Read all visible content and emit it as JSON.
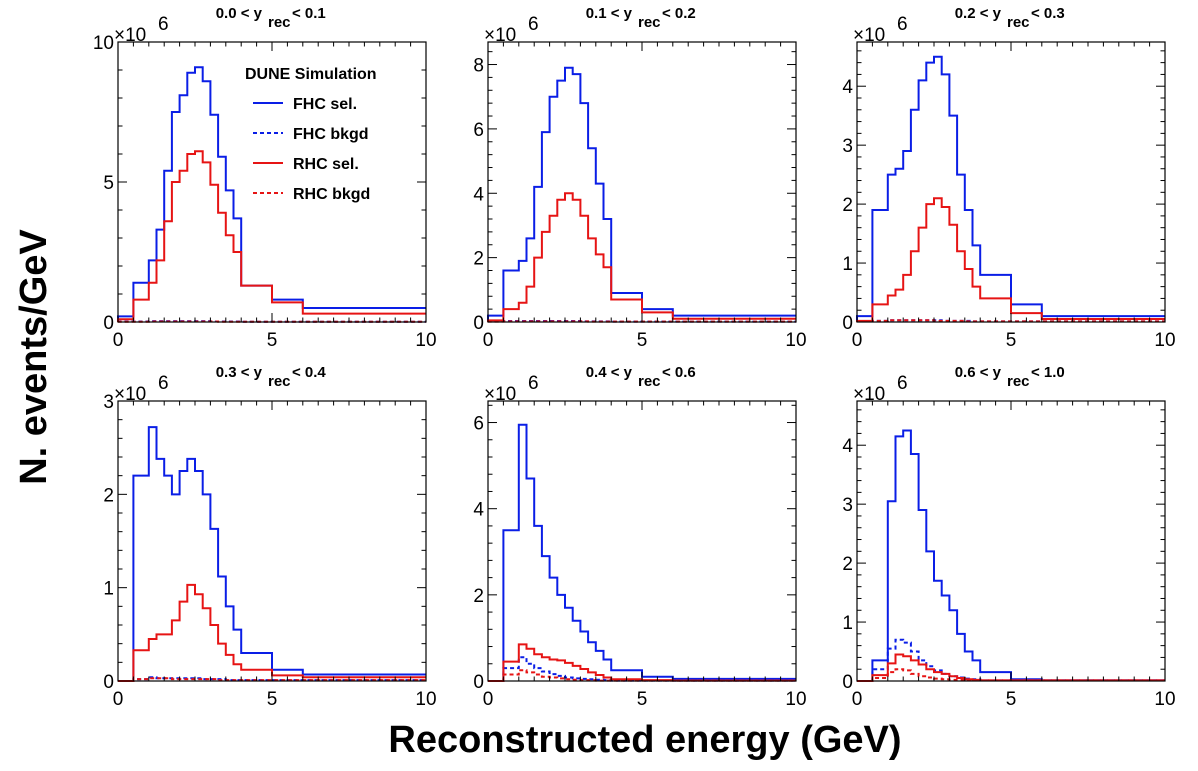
{
  "figure": {
    "xlabel": "Reconstructed energy (GeV)",
    "ylabel": "N. events/GeV",
    "colors": {
      "fhc": "#0a1ee6",
      "rhc": "#e61414",
      "axis": "#000000"
    }
  },
  "legend": {
    "title": "DUNE Simulation",
    "entries": [
      {
        "label": "FHC sel.",
        "series": "fhc_sel"
      },
      {
        "label": "FHC bkgd",
        "series": "fhc_bkgd"
      },
      {
        "label": "RHC sel.",
        "series": "rhc_sel"
      },
      {
        "label": "RHC bkgd",
        "series": "rhc_bkgd"
      }
    ]
  },
  "chart_data": [
    {
      "type": "step-histogram",
      "title_pre": "0.0 < y",
      "title_sub": "rec",
      "title_post": "< 0.1",
      "multiplier": "×10",
      "multiplier_exp": "6",
      "xlabel": "Reconstructed energy (GeV)",
      "ylabel": "N. events/GeV",
      "xlim": [
        0,
        10
      ],
      "ylim": [
        0,
        10
      ],
      "xticks": [
        0,
        5,
        10
      ],
      "yticks": [
        0,
        5,
        10
      ],
      "edges": [
        0,
        0.5,
        1,
        1.25,
        1.5,
        1.75,
        2,
        2.25,
        2.5,
        2.75,
        3,
        3.25,
        3.5,
        3.75,
        4,
        5,
        6,
        10
      ],
      "series": [
        {
          "name": "FHC sel.",
          "key": "fhc_sel",
          "values": [
            0.2,
            1.4,
            2.2,
            3.3,
            5.4,
            7.5,
            8.1,
            8.9,
            9.1,
            8.6,
            7.4,
            5.9,
            4.7,
            3.7,
            1.3,
            0.8,
            0.5
          ]
        },
        {
          "name": "FHC bkgd",
          "key": "fhc_bkgd",
          "values": [
            0.02,
            0.02,
            0.03,
            0.03,
            0.03,
            0.03,
            0.03,
            0.03,
            0.03,
            0.03,
            0.02,
            0.02,
            0.02,
            0.02,
            0.01,
            0.01,
            0.01
          ]
        },
        {
          "name": "RHC sel.",
          "key": "rhc_sel",
          "values": [
            0.1,
            0.8,
            1.4,
            2.2,
            3.6,
            5.0,
            5.4,
            6.0,
            6.1,
            5.7,
            4.9,
            3.9,
            3.1,
            2.5,
            1.3,
            0.7,
            0.3
          ]
        },
        {
          "name": "RHC bkgd",
          "key": "rhc_bkgd",
          "values": [
            0.01,
            0.01,
            0.02,
            0.02,
            0.02,
            0.02,
            0.02,
            0.02,
            0.02,
            0.02,
            0.02,
            0.01,
            0.01,
            0.01,
            0.01,
            0.01,
            0.01
          ]
        }
      ]
    },
    {
      "type": "step-histogram",
      "title_pre": "0.1 < y",
      "title_sub": "rec",
      "title_post": "< 0.2",
      "multiplier": "×10",
      "multiplier_exp": "6",
      "xlabel": "Reconstructed energy (GeV)",
      "ylabel": "N. events/GeV",
      "xlim": [
        0,
        10
      ],
      "ylim": [
        0,
        8.7
      ],
      "xticks": [
        0,
        5,
        10
      ],
      "yticks": [
        0,
        2,
        4,
        6,
        8
      ],
      "edges": [
        0,
        0.5,
        1,
        1.25,
        1.5,
        1.75,
        2,
        2.25,
        2.5,
        2.75,
        3,
        3.25,
        3.5,
        3.75,
        4,
        5,
        6,
        10
      ],
      "series": [
        {
          "name": "FHC sel.",
          "key": "fhc_sel",
          "values": [
            0.2,
            1.6,
            1.9,
            2.6,
            4.2,
            5.9,
            7.0,
            7.5,
            7.9,
            7.7,
            6.8,
            5.4,
            4.3,
            3.2,
            0.9,
            0.4,
            0.2
          ]
        },
        {
          "name": "FHC bkgd",
          "key": "fhc_bkgd",
          "values": [
            0.02,
            0.03,
            0.03,
            0.03,
            0.03,
            0.03,
            0.03,
            0.03,
            0.03,
            0.03,
            0.02,
            0.02,
            0.02,
            0.02,
            0.01,
            0.01,
            0.01
          ]
        },
        {
          "name": "RHC sel.",
          "key": "rhc_sel",
          "values": [
            0.05,
            0.4,
            0.6,
            1.1,
            2.0,
            2.8,
            3.3,
            3.8,
            4.0,
            3.8,
            3.3,
            2.6,
            2.1,
            1.7,
            0.7,
            0.3,
            0.1
          ]
        },
        {
          "name": "RHC bkgd",
          "key": "rhc_bkgd",
          "values": [
            0.01,
            0.02,
            0.02,
            0.02,
            0.02,
            0.02,
            0.02,
            0.02,
            0.02,
            0.02,
            0.02,
            0.01,
            0.01,
            0.01,
            0.01,
            0.01,
            0.01
          ]
        }
      ]
    },
    {
      "type": "step-histogram",
      "title_pre": "0.2 < y",
      "title_sub": "rec",
      "title_post": "< 0.3",
      "multiplier": "×10",
      "multiplier_exp": "6",
      "xlabel": "Reconstructed energy (GeV)",
      "ylabel": "N. events/GeV",
      "xlim": [
        0,
        10
      ],
      "ylim": [
        0,
        4.75
      ],
      "xticks": [
        0,
        5,
        10
      ],
      "yticks": [
        0,
        1,
        2,
        3,
        4
      ],
      "edges": [
        0,
        0.5,
        1,
        1.25,
        1.5,
        1.75,
        2,
        2.25,
        2.5,
        2.75,
        3,
        3.25,
        3.5,
        3.75,
        4,
        5,
        6,
        10
      ],
      "series": [
        {
          "name": "FHC sel.",
          "key": "fhc_sel",
          "values": [
            0.1,
            1.9,
            2.5,
            2.6,
            2.9,
            3.6,
            4.1,
            4.4,
            4.5,
            4.2,
            3.5,
            2.5,
            1.9,
            1.3,
            0.8,
            0.3,
            0.1
          ]
        },
        {
          "name": "FHC bkgd",
          "key": "fhc_bkgd",
          "values": [
            0.01,
            0.02,
            0.03,
            0.03,
            0.03,
            0.03,
            0.03,
            0.03,
            0.03,
            0.02,
            0.02,
            0.02,
            0.02,
            0.01,
            0.01,
            0.01,
            0.01
          ]
        },
        {
          "name": "RHC sel.",
          "key": "rhc_sel",
          "values": [
            0.02,
            0.3,
            0.45,
            0.55,
            0.8,
            1.2,
            1.6,
            2.0,
            2.1,
            1.95,
            1.65,
            1.2,
            0.9,
            0.6,
            0.4,
            0.15,
            0.05
          ]
        },
        {
          "name": "RHC bkgd",
          "key": "rhc_bkgd",
          "values": [
            0.01,
            0.02,
            0.03,
            0.03,
            0.03,
            0.03,
            0.03,
            0.03,
            0.02,
            0.02,
            0.02,
            0.02,
            0.01,
            0.01,
            0.01,
            0.01,
            0.01
          ]
        }
      ]
    },
    {
      "type": "step-histogram",
      "title_pre": "0.3 < y",
      "title_sub": "rec",
      "title_post": "< 0.4",
      "multiplier": "×10",
      "multiplier_exp": "6",
      "xlabel": "Reconstructed energy (GeV)",
      "ylabel": "N. events/GeV",
      "xlim": [
        0,
        10
      ],
      "ylim": [
        0,
        3
      ],
      "xticks": [
        0,
        5,
        10
      ],
      "yticks": [
        0,
        1,
        2,
        3
      ],
      "edges": [
        0,
        0.5,
        1,
        1.25,
        1.5,
        1.75,
        2,
        2.25,
        2.5,
        2.75,
        3,
        3.25,
        3.5,
        3.75,
        4,
        5,
        6,
        10
      ],
      "series": [
        {
          "name": "FHC sel.",
          "key": "fhc_sel",
          "values": [
            0.0,
            2.2,
            2.72,
            2.38,
            2.2,
            2.0,
            2.25,
            2.38,
            2.25,
            2.0,
            1.63,
            1.12,
            0.8,
            0.55,
            0.3,
            0.12,
            0.07
          ]
        },
        {
          "name": "FHC bkgd",
          "key": "fhc_bkgd",
          "values": [
            0.0,
            0.02,
            0.04,
            0.03,
            0.03,
            0.03,
            0.03,
            0.03,
            0.03,
            0.02,
            0.02,
            0.02,
            0.01,
            0.01,
            0.01,
            0.01,
            0.01
          ]
        },
        {
          "name": "RHC sel.",
          "key": "rhc_sel",
          "values": [
            0.0,
            0.33,
            0.45,
            0.5,
            0.5,
            0.65,
            0.85,
            1.03,
            0.93,
            0.78,
            0.6,
            0.4,
            0.28,
            0.18,
            0.12,
            0.06,
            0.04
          ]
        },
        {
          "name": "RHC bkgd",
          "key": "rhc_bkgd",
          "values": [
            0.0,
            0.02,
            0.03,
            0.03,
            0.03,
            0.02,
            0.02,
            0.02,
            0.02,
            0.02,
            0.02,
            0.01,
            0.01,
            0.01,
            0.01,
            0.01,
            0.01
          ]
        }
      ]
    },
    {
      "type": "step-histogram",
      "title_pre": "0.4 < y",
      "title_sub": "rec",
      "title_post": "< 0.6",
      "multiplier": "×10",
      "multiplier_exp": "6",
      "xlabel": "Reconstructed energy (GeV)",
      "ylabel": "N. events/GeV",
      "xlim": [
        0,
        10
      ],
      "ylim": [
        0,
        6.5
      ],
      "xticks": [
        0,
        5,
        10
      ],
      "yticks": [
        0,
        2,
        4,
        6
      ],
      "edges": [
        0,
        0.5,
        1,
        1.25,
        1.5,
        1.75,
        2,
        2.25,
        2.5,
        2.75,
        3,
        3.25,
        3.5,
        3.75,
        4,
        5,
        6,
        10
      ],
      "series": [
        {
          "name": "FHC sel.",
          "key": "fhc_sel",
          "values": [
            0.0,
            3.5,
            5.95,
            4.7,
            3.6,
            2.9,
            2.4,
            2.0,
            1.7,
            1.4,
            1.15,
            0.9,
            0.7,
            0.5,
            0.25,
            0.1,
            0.05
          ]
        },
        {
          "name": "FHC bkgd",
          "key": "fhc_bkgd",
          "values": [
            0.0,
            0.3,
            0.55,
            0.4,
            0.3,
            0.22,
            0.16,
            0.12,
            0.08,
            0.06,
            0.05,
            0.04,
            0.03,
            0.02,
            0.01,
            0.01,
            0.01
          ]
        },
        {
          "name": "RHC sel.",
          "key": "rhc_sel",
          "values": [
            0.0,
            0.45,
            0.85,
            0.75,
            0.62,
            0.55,
            0.5,
            0.48,
            0.42,
            0.35,
            0.28,
            0.2,
            0.14,
            0.08,
            0.04,
            0.02,
            0.01
          ]
        },
        {
          "name": "RHC bkgd",
          "key": "rhc_bkgd",
          "values": [
            0.0,
            0.15,
            0.25,
            0.2,
            0.15,
            0.1,
            0.08,
            0.06,
            0.04,
            0.03,
            0.02,
            0.02,
            0.01,
            0.01,
            0.01,
            0.01,
            0.01
          ]
        }
      ]
    },
    {
      "type": "step-histogram",
      "title_pre": "0.6 < y",
      "title_sub": "rec",
      "title_post": "< 1.0",
      "multiplier": "×10",
      "multiplier_exp": "6",
      "xlabel": "Reconstructed energy (GeV)",
      "ylabel": "N. events/GeV",
      "xlim": [
        0,
        10
      ],
      "ylim": [
        0,
        4.75
      ],
      "xticks": [
        0,
        5,
        10
      ],
      "yticks": [
        0,
        1,
        2,
        3,
        4
      ],
      "edges": [
        0,
        0.5,
        1,
        1.25,
        1.5,
        1.75,
        2,
        2.25,
        2.5,
        2.75,
        3,
        3.25,
        3.5,
        3.75,
        4,
        5,
        6,
        10
      ],
      "series": [
        {
          "name": "FHC sel.",
          "key": "fhc_sel",
          "values": [
            0.0,
            0.35,
            3.05,
            4.15,
            4.25,
            3.85,
            2.9,
            2.2,
            1.7,
            1.45,
            1.2,
            0.8,
            0.5,
            0.35,
            0.15,
            0.03,
            0.01
          ]
        },
        {
          "name": "FHC bkgd",
          "key": "fhc_bkgd",
          "values": [
            0.0,
            0.2,
            0.55,
            0.7,
            0.65,
            0.5,
            0.35,
            0.25,
            0.18,
            0.12,
            0.08,
            0.06,
            0.04,
            0.03,
            0.01,
            0.01,
            0.01
          ]
        },
        {
          "name": "RHC sel.",
          "key": "rhc_sel",
          "values": [
            0.0,
            0.1,
            0.3,
            0.45,
            0.42,
            0.35,
            0.28,
            0.2,
            0.15,
            0.12,
            0.08,
            0.05,
            0.03,
            0.02,
            0.01,
            0.01,
            0.01
          ]
        },
        {
          "name": "RHC bkgd",
          "key": "rhc_bkgd",
          "values": [
            0.0,
            0.05,
            0.15,
            0.2,
            0.18,
            0.12,
            0.08,
            0.06,
            0.04,
            0.03,
            0.02,
            0.02,
            0.01,
            0.01,
            0.01,
            0.01,
            0.01
          ]
        }
      ]
    }
  ]
}
